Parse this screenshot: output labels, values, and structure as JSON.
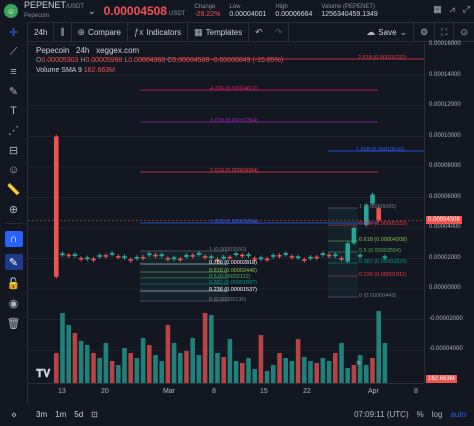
{
  "header": {
    "symbol": "PEPENET",
    "quote": "USDT",
    "name": "Pepecoin",
    "price": "0.00004508",
    "price_unit": "USDT",
    "change_label": "Change",
    "change_value": "-29.22%",
    "low_label": "Low",
    "low_value": "0.00004001",
    "high_label": "High",
    "high_value": "0.00006664",
    "volume_label": "Volume (PEPENET)",
    "volume_value": "1256340459.1349"
  },
  "toolbar": {
    "interval": "24h",
    "compare": "Compare",
    "indicators": "Indicators",
    "templates": "Templates",
    "save": "Save"
  },
  "legend": {
    "title": "Pepecoin",
    "interval": "24h",
    "source": "xeggex.com",
    "o": "0.00005303",
    "h": "0.00005998",
    "l": "0.00004360",
    "c": "0.00004508",
    "chg": "-0.00000849 (-15.85%)",
    "vol_label": "Volume SMA 9",
    "vol_value": "162.663M"
  },
  "price_axis": [
    "0.00016000",
    "0.00014000",
    "0.00012000",
    "0.00010000",
    "0.00008000",
    "0.00006000",
    "0.00004000",
    "0.00002000",
    "0.00000000",
    "-0.00002000",
    "-0.00004000"
  ],
  "price_badge": "0.00004508",
  "volume_badge": "162.663M",
  "time_axis": [
    "13",
    "20",
    "Mar",
    "8",
    "15",
    "22",
    "Apr",
    "8"
  ],
  "time_cursor": "",
  "footer": {
    "ranges": [
      "3m",
      "1m",
      "5d"
    ],
    "time": "07:09:11 (UTC)",
    "pct": "%",
    "log": "log",
    "auto": "auto"
  },
  "fib_large": [
    {
      "label": "2.618 (0.00016732)",
      "color": "#f23645"
    },
    {
      "label": "4.236 (0.00014617)",
      "color": "#e91e63"
    },
    {
      "label": "3.618 (0.00012304)",
      "color": "#9c27b0"
    },
    {
      "label": "1.618 (0.00010510)",
      "color": "#2962ff"
    },
    {
      "label": "2.618 (0.00009084)",
      "color": "#f23645"
    },
    {
      "label": "1.618 (0.00005664)",
      "color": "#2962ff"
    }
  ],
  "fib_left": [
    {
      "label": "1 (0.00003550)",
      "color": "#787b86"
    },
    {
      "label": "0.786 (0.00002818)",
      "color": "#ffffff"
    },
    {
      "label": "0.618 (0.00002446)",
      "color": "#8bc34a"
    },
    {
      "label": "0.5 (0.00002112)",
      "color": "#4caf50"
    },
    {
      "label": "0.382 (0.00001887)",
      "color": "#009688"
    },
    {
      "label": "0.236 (0.00001537)",
      "color": "#ffffff"
    },
    {
      "label": "0 (0.00000130)",
      "color": "#787b86"
    }
  ],
  "fib_right": [
    {
      "label": "1 (0.00006665)",
      "color": "#787b86"
    },
    {
      "label": "0.786 (0.00005333)",
      "color": "#f23645"
    },
    {
      "label": "0.618 (0.00004208)",
      "color": "#8bc34a"
    },
    {
      "label": "0.5 (0.00003554)",
      "color": "#4caf50"
    },
    {
      "label": "0.382 (0.00002820)",
      "color": "#009688"
    },
    {
      "label": "0.236 (0.00001911)",
      "color": "#f23645"
    },
    {
      "label": "0 (0.00000443)",
      "color": "#787b86"
    }
  ],
  "colors": {
    "up": "#26a69a",
    "down": "#ef5350",
    "bg": "#131722",
    "accent": "#2962ff"
  },
  "icons": [
    "crosshair-icon",
    "trend-line-icon",
    "fib-icon",
    "brush-icon",
    "text-icon",
    "pattern-icon",
    "measure-icon",
    "emoji-icon",
    "ruler-icon",
    "zoom-icon",
    "magnet-icon",
    "lock-icon",
    "eye-icon",
    "trash-icon"
  ]
}
